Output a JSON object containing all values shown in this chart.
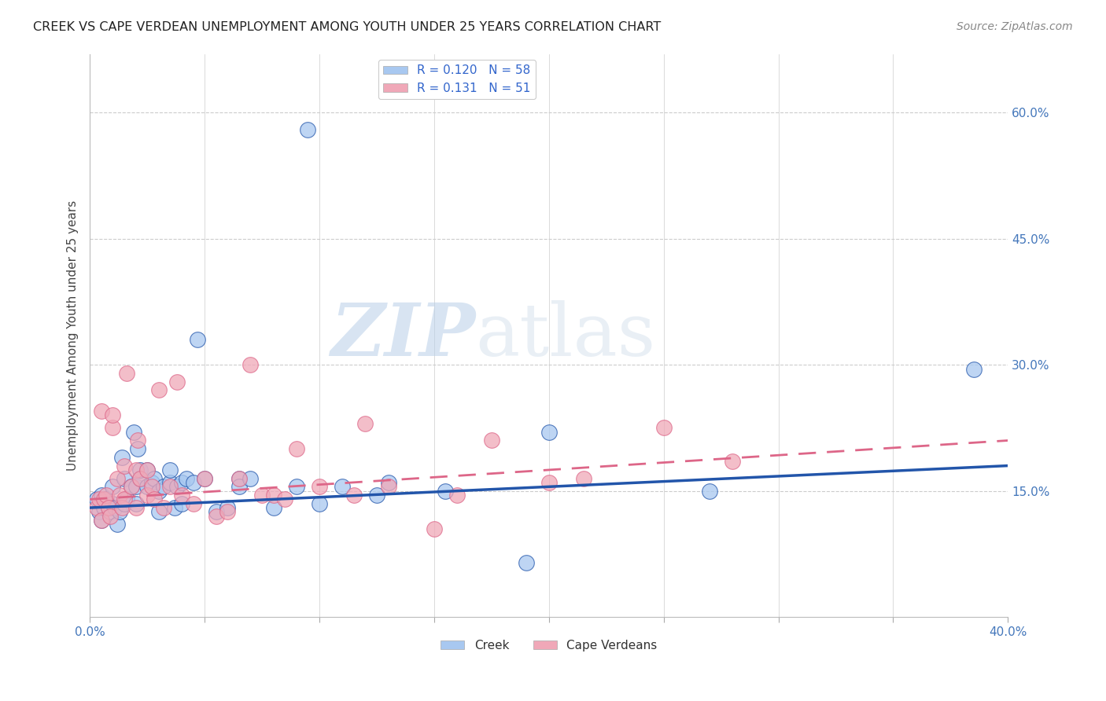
{
  "title": "CREEK VS CAPE VERDEAN UNEMPLOYMENT AMONG YOUTH UNDER 25 YEARS CORRELATION CHART",
  "source": "Source: ZipAtlas.com",
  "ylabel": "Unemployment Among Youth under 25 years",
  "xlim": [
    0.0,
    0.4
  ],
  "ylim": [
    0.0,
    0.67
  ],
  "xticks": [
    0.0,
    0.05,
    0.1,
    0.15,
    0.2,
    0.25,
    0.3,
    0.35,
    0.4
  ],
  "xticklabels": [
    "0.0%",
    "",
    "",
    "",
    "",
    "",
    "",
    "",
    "40.0%"
  ],
  "yticks_right": [
    0.15,
    0.3,
    0.45,
    0.6
  ],
  "ytick_right_labels": [
    "15.0%",
    "30.0%",
    "45.0%",
    "60.0%"
  ],
  "creek_R": 0.12,
  "creek_N": 58,
  "cv_R": 0.131,
  "cv_N": 51,
  "creek_color": "#a8c8f0",
  "cv_color": "#f0a8b8",
  "creek_line_color": "#2255aa",
  "cv_line_color": "#dd6688",
  "creek_scatter_x": [
    0.003,
    0.004,
    0.005,
    0.005,
    0.006,
    0.007,
    0.008,
    0.009,
    0.01,
    0.01,
    0.011,
    0.012,
    0.013,
    0.014,
    0.015,
    0.015,
    0.016,
    0.018,
    0.019,
    0.02,
    0.02,
    0.021,
    0.022,
    0.022,
    0.025,
    0.025,
    0.027,
    0.028,
    0.03,
    0.03,
    0.032,
    0.035,
    0.035,
    0.037,
    0.038,
    0.04,
    0.04,
    0.042,
    0.045,
    0.047,
    0.05,
    0.055,
    0.06,
    0.065,
    0.065,
    0.07,
    0.08,
    0.09,
    0.095,
    0.1,
    0.11,
    0.125,
    0.13,
    0.155,
    0.19,
    0.2,
    0.27,
    0.385
  ],
  "creek_scatter_y": [
    0.14,
    0.125,
    0.145,
    0.115,
    0.13,
    0.14,
    0.13,
    0.125,
    0.135,
    0.155,
    0.13,
    0.11,
    0.125,
    0.19,
    0.135,
    0.165,
    0.14,
    0.155,
    0.22,
    0.135,
    0.155,
    0.2,
    0.165,
    0.175,
    0.155,
    0.175,
    0.16,
    0.165,
    0.125,
    0.15,
    0.155,
    0.16,
    0.175,
    0.13,
    0.155,
    0.135,
    0.16,
    0.165,
    0.16,
    0.33,
    0.165,
    0.125,
    0.13,
    0.165,
    0.155,
    0.165,
    0.13,
    0.155,
    0.58,
    0.135,
    0.155,
    0.145,
    0.16,
    0.15,
    0.065,
    0.22,
    0.15,
    0.295
  ],
  "cv_scatter_x": [
    0.003,
    0.004,
    0.005,
    0.005,
    0.006,
    0.007,
    0.008,
    0.009,
    0.01,
    0.01,
    0.012,
    0.013,
    0.014,
    0.015,
    0.015,
    0.016,
    0.018,
    0.02,
    0.02,
    0.021,
    0.022,
    0.025,
    0.025,
    0.027,
    0.028,
    0.03,
    0.032,
    0.035,
    0.038,
    0.04,
    0.045,
    0.05,
    0.055,
    0.06,
    0.065,
    0.07,
    0.075,
    0.08,
    0.085,
    0.09,
    0.1,
    0.115,
    0.12,
    0.13,
    0.15,
    0.16,
    0.175,
    0.2,
    0.215,
    0.25,
    0.28
  ],
  "cv_scatter_y": [
    0.13,
    0.14,
    0.115,
    0.245,
    0.14,
    0.145,
    0.13,
    0.12,
    0.225,
    0.24,
    0.165,
    0.145,
    0.13,
    0.14,
    0.18,
    0.29,
    0.155,
    0.13,
    0.175,
    0.21,
    0.165,
    0.145,
    0.175,
    0.155,
    0.14,
    0.27,
    0.13,
    0.155,
    0.28,
    0.145,
    0.135,
    0.165,
    0.12,
    0.125,
    0.165,
    0.3,
    0.145,
    0.145,
    0.14,
    0.2,
    0.155,
    0.145,
    0.23,
    0.155,
    0.105,
    0.145,
    0.21,
    0.16,
    0.165,
    0.225,
    0.185
  ],
  "creek_trend_x0": 0.0,
  "creek_trend_y0": 0.13,
  "creek_trend_x1": 0.4,
  "creek_trend_y1": 0.18,
  "cv_trend_x0": 0.0,
  "cv_trend_y0": 0.14,
  "cv_trend_x1": 0.4,
  "cv_trend_y1": 0.21,
  "watermark_zip": "ZIP",
  "watermark_atlas": "atlas",
  "background_color": "#ffffff",
  "grid_color": "#cccccc"
}
